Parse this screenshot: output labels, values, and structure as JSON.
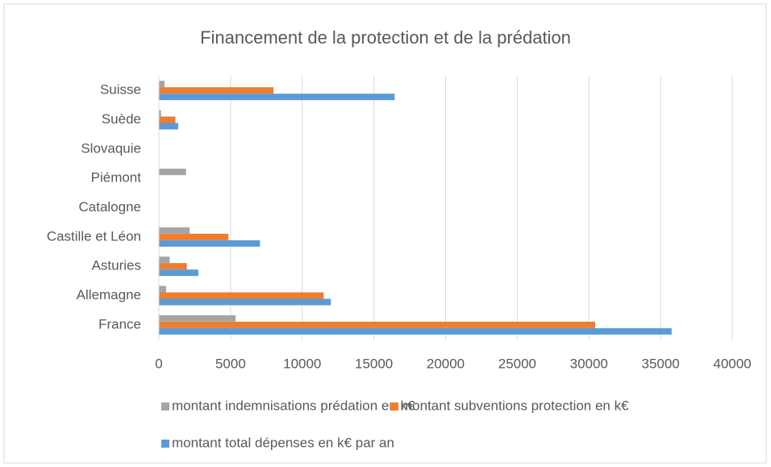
{
  "chart_data": {
    "type": "barh",
    "title": "Financement de la protection et de la prédation",
    "categories": [
      "France",
      "Allemagne",
      "Asturies",
      "Castille et Léon",
      "Catalogne",
      "Piémont",
      "Slovaquie",
      "Suède",
      "Suisse"
    ],
    "series": [
      {
        "name": "montant indemnisations prédation en k€",
        "color": "#a5a5a5",
        "values": [
          5350,
          500,
          750,
          2150,
          0,
          1900,
          0,
          150,
          400
        ]
      },
      {
        "name": "montant subventions protection en k€",
        "color": "#ed7d31",
        "values": [
          30430,
          11500,
          1950,
          4850,
          0,
          0,
          0,
          1150,
          8000
        ]
      },
      {
        "name": "montant total dépenses en k€ par an",
        "color": "#5b9bd5",
        "values": [
          35770,
          12000,
          2750,
          7050,
          0,
          0,
          0,
          1350,
          16450
        ]
      }
    ],
    "xlim": [
      0,
      40000
    ],
    "xticks": [
      0,
      5000,
      10000,
      15000,
      20000,
      25000,
      30000,
      35000,
      40000
    ],
    "grid": true
  }
}
